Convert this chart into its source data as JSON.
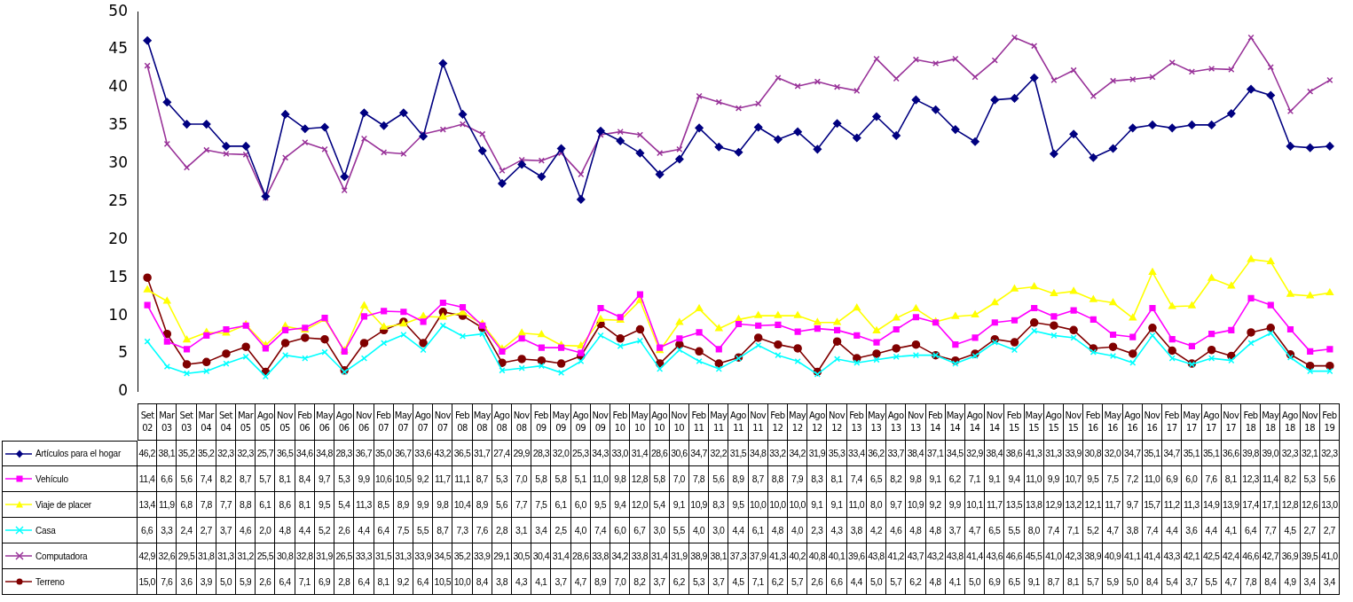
{
  "chart_data": {
    "type": "line",
    "categories": [
      "Set 02",
      "Mar 03",
      "Set 03",
      "Mar 04",
      "Set 04",
      "Mar 05",
      "Ago 05",
      "Nov 05",
      "Feb 06",
      "May 06",
      "Ago 06",
      "Nov 06",
      "Feb 07",
      "May 07",
      "Ago 07",
      "Nov 07",
      "Feb 08",
      "May 08",
      "Ago 08",
      "Nov 08",
      "Feb 09",
      "May 09",
      "Ago 09",
      "Nov 09",
      "Feb 10",
      "May 10",
      "Ago 10",
      "Nov 10",
      "Feb 11",
      "May 11",
      "Ago 11",
      "Nov 11",
      "Feb 12",
      "May 12",
      "Ago 12",
      "Nov 12",
      "Feb 13",
      "May 13",
      "Ago 13",
      "Nov 13",
      "Feb 14",
      "May 14",
      "Ago 14",
      "Nov 14",
      "Feb 15",
      "May 15",
      "Ago 15",
      "Nov 15",
      "Feb 16",
      "May 16",
      "Ago 16",
      "Nov 16",
      "Feb 17",
      "May 17",
      "Ago 17",
      "Nov 17",
      "Feb 18",
      "May 18",
      "Ago 18",
      "Nov 18",
      "Feb 19"
    ],
    "series": [
      {
        "name": "Artículos para el hogar",
        "color": "#000080",
        "marker": "diamond",
        "values": [
          46.2,
          38.1,
          35.2,
          35.2,
          32.3,
          32.3,
          25.7,
          36.5,
          34.6,
          34.8,
          28.3,
          36.7,
          35.0,
          36.7,
          33.6,
          43.2,
          36.5,
          31.7,
          27.4,
          29.9,
          28.3,
          32.0,
          25.3,
          34.3,
          33.0,
          31.4,
          28.6,
          30.6,
          34.7,
          32.2,
          31.5,
          34.8,
          33.2,
          34.2,
          31.9,
          35.3,
          33.4,
          36.2,
          33.7,
          38.4,
          37.1,
          34.5,
          32.9,
          38.4,
          38.6,
          41.3,
          31.3,
          33.9,
          30.8,
          32.0,
          34.7,
          35.1,
          34.7,
          35.1,
          35.1,
          36.6,
          39.8,
          39.0,
          32.3,
          32.1,
          32.3
        ],
        "value_labels": [
          "46,2",
          "38,1",
          "35,2",
          "35,2",
          "32,3",
          "32,3",
          "25,7",
          "36,5",
          "34,6",
          "34,8",
          "28,3",
          "36,7",
          "35,0",
          "36,7",
          "33,6",
          "43,2",
          "36,5",
          "31,7",
          "27,4",
          "29,9",
          "28,3",
          "32,0",
          "25,3",
          "34,3",
          "33,0",
          "31,4",
          "28,6",
          "30,6",
          "34,7",
          "32,2",
          "31,5",
          "34,8",
          "33,2",
          "34,2",
          "31,9",
          "35,3",
          "33,4",
          "36,2",
          "33,7",
          "38,4",
          "37,1",
          "34,5",
          "32,9",
          "38,4",
          "38,6",
          "41,3",
          "31,3",
          "33,9",
          "30,8",
          "32,0",
          "34,7",
          "35,1",
          "34,7",
          "35,1",
          "35,1",
          "36,6",
          "39,8",
          "39,0",
          "32,3",
          "32,1",
          "32,3"
        ]
      },
      {
        "name": "Vehículo",
        "color": "#ff00ff",
        "marker": "square",
        "values": [
          11.4,
          6.6,
          5.6,
          7.4,
          8.2,
          8.7,
          5.7,
          8.1,
          8.4,
          9.7,
          5.3,
          9.9,
          10.6,
          10.5,
          9.2,
          11.7,
          11.1,
          8.7,
          5.3,
          7.0,
          5.8,
          5.8,
          5.1,
          11.0,
          9.8,
          12.8,
          5.8,
          7.0,
          7.8,
          5.6,
          8.9,
          8.7,
          8.8,
          7.9,
          8.3,
          8.1,
          7.4,
          6.5,
          8.2,
          9.8,
          9.1,
          6.2,
          7.1,
          9.1,
          9.4,
          11.0,
          9.9,
          10.7,
          9.5,
          7.5,
          7.2,
          11.0,
          6.9,
          6.0,
          7.6,
          8.1,
          12.3,
          11.4,
          8.2,
          5.3,
          5.6
        ],
        "value_labels": [
          "11,4",
          "6,6",
          "5,6",
          "7,4",
          "8,2",
          "8,7",
          "5,7",
          "8,1",
          "8,4",
          "9,7",
          "5,3",
          "9,9",
          "10,6",
          "10,5",
          "9,2",
          "11,7",
          "11,1",
          "8,7",
          "5,3",
          "7,0",
          "5,8",
          "5,8",
          "5,1",
          "11,0",
          "9,8",
          "12,8",
          "5,8",
          "7,0",
          "7,8",
          "5,6",
          "8,9",
          "8,7",
          "8,8",
          "7,9",
          "8,3",
          "8,1",
          "7,4",
          "6,5",
          "8,2",
          "9,8",
          "9,1",
          "6,2",
          "7,1",
          "9,1",
          "9,4",
          "11,0",
          "9,9",
          "10,7",
          "9,5",
          "7,5",
          "7,2",
          "11,0",
          "6,9",
          "6,0",
          "7,6",
          "8,1",
          "12,3",
          "11,4",
          "8,2",
          "5,3",
          "5,6"
        ]
      },
      {
        "name": "Viaje de placer",
        "color": "#ffff00",
        "marker": "triangle",
        "values": [
          13.4,
          11.9,
          6.8,
          7.8,
          7.7,
          8.8,
          6.1,
          8.6,
          8.1,
          9.5,
          5.4,
          11.3,
          8.5,
          8.9,
          9.9,
          9.8,
          10.4,
          8.9,
          5.6,
          7.7,
          7.5,
          6.1,
          6.0,
          9.5,
          9.4,
          12.0,
          5.4,
          9.1,
          10.9,
          8.3,
          9.5,
          10.0,
          10.0,
          10.0,
          9.1,
          9.1,
          11.0,
          8.0,
          9.7,
          10.9,
          9.2,
          9.9,
          10.1,
          11.7,
          13.5,
          13.8,
          12.9,
          13.2,
          12.1,
          11.7,
          9.7,
          15.7,
          11.2,
          11.3,
          14.9,
          13.9,
          17.4,
          17.1,
          12.8,
          12.6,
          13.0
        ],
        "value_labels": [
          "13,4",
          "11,9",
          "6,8",
          "7,8",
          "7,7",
          "8,8",
          "6,1",
          "8,6",
          "8,1",
          "9,5",
          "5,4",
          "11,3",
          "8,5",
          "8,9",
          "9,9",
          "9,8",
          "10,4",
          "8,9",
          "5,6",
          "7,7",
          "7,5",
          "6,1",
          "6,0",
          "9,5",
          "9,4",
          "12,0",
          "5,4",
          "9,1",
          "10,9",
          "8,3",
          "9,5",
          "10,0",
          "10,0",
          "10,0",
          "9,1",
          "9,1",
          "11,0",
          "8,0",
          "9,7",
          "10,9",
          "9,2",
          "9,9",
          "10,1",
          "11,7",
          "13,5",
          "13,8",
          "12,9",
          "13,2",
          "12,1",
          "11,7",
          "9,7",
          "15,7",
          "11,2",
          "11,3",
          "14,9",
          "13,9",
          "17,4",
          "17,1",
          "12,8",
          "12,6",
          "13,0"
        ]
      },
      {
        "name": "Casa",
        "color": "#00ffff",
        "marker": "cross",
        "values": [
          6.6,
          3.3,
          2.4,
          2.7,
          3.7,
          4.6,
          2.0,
          4.8,
          4.4,
          5.2,
          2.6,
          4.4,
          6.4,
          7.5,
          5.5,
          8.7,
          7.3,
          7.6,
          2.8,
          3.1,
          3.4,
          2.5,
          4.0,
          7.4,
          6.0,
          6.7,
          3.0,
          5.5,
          4.0,
          3.0,
          4.4,
          6.1,
          4.8,
          4.0,
          2.3,
          4.3,
          3.8,
          4.2,
          4.6,
          4.8,
          4.8,
          3.7,
          4.7,
          6.5,
          5.5,
          8.0,
          7.4,
          7.1,
          5.2,
          4.7,
          3.8,
          7.4,
          4.4,
          3.6,
          4.4,
          4.1,
          6.4,
          7.7,
          4.5,
          2.7,
          2.7
        ],
        "value_labels": [
          "6,6",
          "3,3",
          "2,4",
          "2,7",
          "3,7",
          "4,6",
          "2,0",
          "4,8",
          "4,4",
          "5,2",
          "2,6",
          "4,4",
          "6,4",
          "7,5",
          "5,5",
          "8,7",
          "7,3",
          "7,6",
          "2,8",
          "3,1",
          "3,4",
          "2,5",
          "4,0",
          "7,4",
          "6,0",
          "6,7",
          "3,0",
          "5,5",
          "4,0",
          "3,0",
          "4,4",
          "6,1",
          "4,8",
          "4,0",
          "2,3",
          "4,3",
          "3,8",
          "4,2",
          "4,6",
          "4,8",
          "4,8",
          "3,7",
          "4,7",
          "6,5",
          "5,5",
          "8,0",
          "7,4",
          "7,1",
          "5,2",
          "4,7",
          "3,8",
          "7,4",
          "4,4",
          "3,6",
          "4,4",
          "4,1",
          "6,4",
          "7,7",
          "4,5",
          "2,7",
          "2,7"
        ]
      },
      {
        "name": "Computadora",
        "color": "#993399",
        "marker": "cross",
        "values": [
          42.9,
          32.6,
          29.5,
          31.8,
          31.3,
          31.2,
          25.5,
          30.8,
          32.8,
          31.9,
          26.5,
          33.3,
          31.5,
          31.3,
          33.9,
          34.5,
          35.2,
          33.9,
          29.1,
          30.5,
          30.4,
          31.4,
          28.6,
          33.8,
          34.2,
          33.8,
          31.4,
          31.9,
          38.9,
          38.1,
          37.3,
          37.9,
          41.3,
          40.2,
          40.8,
          40.1,
          39.6,
          43.8,
          41.2,
          43.7,
          43.2,
          43.8,
          41.4,
          43.6,
          46.6,
          45.5,
          41.0,
          42.3,
          38.9,
          40.9,
          41.1,
          41.4,
          43.3,
          42.1,
          42.5,
          42.4,
          46.6,
          42.7,
          36.9,
          39.5,
          41.0
        ],
        "value_labels": [
          "42,9",
          "32,6",
          "29,5",
          "31,8",
          "31,3",
          "31,2",
          "25,5",
          "30,8",
          "32,8",
          "31,9",
          "26,5",
          "33,3",
          "31,5",
          "31,3",
          "33,9",
          "34,5",
          "35,2",
          "33,9",
          "29,1",
          "30,5",
          "30,4",
          "31,4",
          "28,6",
          "33,8",
          "34,2",
          "33,8",
          "31,4",
          "31,9",
          "38,9",
          "38,1",
          "37,3",
          "37,9",
          "41,3",
          "40,2",
          "40,8",
          "40,1",
          "39,6",
          "43,8",
          "41,2",
          "43,7",
          "43,2",
          "43,8",
          "41,4",
          "43,6",
          "46,6",
          "45,5",
          "41,0",
          "42,3",
          "38,9",
          "40,9",
          "41,1",
          "41,4",
          "43,3",
          "42,1",
          "42,5",
          "42,4",
          "46,6",
          "42,7",
          "36,9",
          "39,5",
          "41,0"
        ]
      },
      {
        "name": "Terreno",
        "color": "#800000",
        "marker": "circle",
        "values": [
          15.0,
          7.6,
          3.6,
          3.9,
          5.0,
          5.9,
          2.6,
          6.4,
          7.1,
          6.9,
          2.8,
          6.4,
          8.1,
          9.2,
          6.4,
          10.5,
          10.0,
          8.4,
          3.8,
          4.3,
          4.1,
          3.7,
          4.7,
          8.9,
          7.0,
          8.2,
          3.7,
          6.2,
          5.3,
          3.7,
          4.5,
          7.1,
          6.2,
          5.7,
          2.6,
          6.6,
          4.4,
          5.0,
          5.7,
          6.2,
          4.8,
          4.1,
          5.0,
          6.9,
          6.5,
          9.1,
          8.7,
          8.1,
          5.7,
          5.9,
          5.0,
          8.4,
          5.4,
          3.7,
          5.5,
          4.7,
          7.8,
          8.4,
          4.9,
          3.4,
          3.4
        ],
        "value_labels": [
          "15,0",
          "7,6",
          "3,6",
          "3,9",
          "5,0",
          "5,9",
          "2,6",
          "6,4",
          "7,1",
          "6,9",
          "2,8",
          "6,4",
          "8,1",
          "9,2",
          "6,4",
          "10,5",
          "10,0",
          "8,4",
          "3,8",
          "4,3",
          "4,1",
          "3,7",
          "4,7",
          "8,9",
          "7,0",
          "8,2",
          "3,7",
          "6,2",
          "5,3",
          "3,7",
          "4,5",
          "7,1",
          "6,2",
          "5,7",
          "2,6",
          "6,6",
          "4,4",
          "5,0",
          "5,7",
          "6,2",
          "4,8",
          "4,1",
          "5,0",
          "6,9",
          "6,5",
          "9,1",
          "8,7",
          "8,1",
          "5,7",
          "5,9",
          "5,0",
          "8,4",
          "5,4",
          "3,7",
          "5,5",
          "4,7",
          "7,8",
          "8,4",
          "4,9",
          "3,4",
          "3,4"
        ]
      }
    ],
    "ylim": [
      0,
      50
    ],
    "yticks": [
      0,
      5,
      10,
      15,
      20,
      25,
      30,
      35,
      40,
      45,
      50
    ],
    "legend": "bottom"
  }
}
